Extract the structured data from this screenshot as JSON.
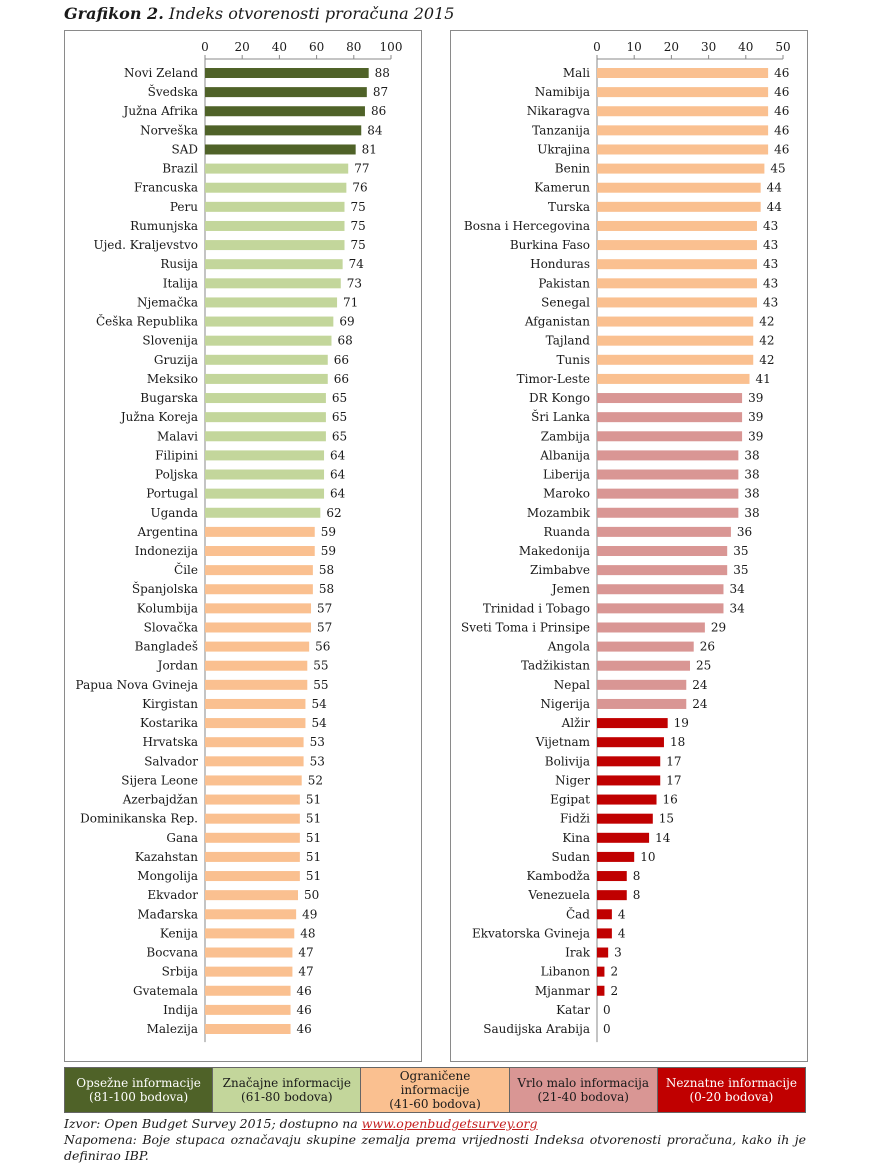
{
  "figure": {
    "title_bold": "Grafikon 2.",
    "title_rest": "Indeks otvorenosti proračuna 2015"
  },
  "colors": {
    "opsezne": "#4f6228",
    "znacajne": "#c3d69b",
    "ogranicene": "#fac090",
    "vrlo_malo": "#d99694",
    "neznatne": "#c00000"
  },
  "chart_data": [
    {
      "type": "bar",
      "orientation": "horizontal",
      "xlim": [
        0,
        100
      ],
      "ticks": [
        0,
        20,
        40,
        60,
        80,
        100
      ],
      "categories": [
        "Novi Zeland",
        "Švedska",
        "Južna Afrika",
        "Norveška",
        "SAD",
        "Brazil",
        "Francuska",
        "Peru",
        "Rumunjska",
        "Ujed. Kraljevstvo",
        "Rusija",
        "Italija",
        "Njemačka",
        "Češka Republika",
        "Slovenija",
        "Gruzija",
        "Meksiko",
        "Bugarska",
        "Južna Koreja",
        "Malavi",
        "Filipini",
        "Poljska",
        "Portugal",
        "Uganda",
        "Argentina",
        "Indonezija",
        "Čile",
        "Španjolska",
        "Kolumbija",
        "Slovačka",
        "Bangladeš",
        "Jordan",
        "Papua Nova Gvineja",
        "Kirgistan",
        "Kostarika",
        "Hrvatska",
        "Salvador",
        "Sijera Leone",
        "Azerbajdžan",
        "Dominikanska Rep.",
        "Gana",
        "Kazahstan",
        "Mongolija",
        "Ekvador",
        "Mađarska",
        "Kenija",
        "Bocvana",
        "Srbija",
        "Gvatemala",
        "Indija",
        "Malezija"
      ],
      "values": [
        88,
        87,
        86,
        84,
        81,
        77,
        76,
        75,
        75,
        75,
        74,
        73,
        71,
        69,
        68,
        66,
        66,
        65,
        65,
        65,
        64,
        64,
        64,
        62,
        59,
        59,
        58,
        58,
        57,
        57,
        56,
        55,
        55,
        54,
        54,
        53,
        53,
        52,
        51,
        51,
        51,
        51,
        51,
        50,
        49,
        48,
        47,
        47,
        46,
        46,
        46
      ]
    },
    {
      "type": "bar",
      "orientation": "horizontal",
      "xlim": [
        0,
        50
      ],
      "ticks": [
        0,
        10,
        20,
        30,
        40,
        50
      ],
      "categories": [
        "Mali",
        "Namibija",
        "Nikaragva",
        "Tanzanija",
        "Ukrajina",
        "Benin",
        "Kamerun",
        "Turska",
        "Bosna i Hercegovina",
        "Burkina Faso",
        "Honduras",
        "Pakistan",
        "Senegal",
        "Afganistan",
        "Tajland",
        "Tunis",
        "Timor-Leste",
        "DR Kongo",
        "Šri Lanka",
        "Zambija",
        "Albanija",
        "Liberija",
        "Maroko",
        "Mozambik",
        "Ruanda",
        "Makedonija",
        "Zimbabve",
        "Jemen",
        "Trinidad i Tobago",
        "Sveti Toma i Prinsipe",
        "Angola",
        "Tadžikistan",
        "Nepal",
        "Nigerija",
        "Alžir",
        "Vijetnam",
        "Bolivija",
        "Niger",
        "Egipat",
        "Fidži",
        "Kina",
        "Sudan",
        "Kambodža",
        "Venezuela",
        "Čad",
        "Ekvatorska Gvineja",
        "Irak",
        "Libanon",
        "Mjanmar",
        "Katar",
        "Saudijska Arabija"
      ],
      "values": [
        46,
        46,
        46,
        46,
        46,
        45,
        44,
        44,
        43,
        43,
        43,
        43,
        43,
        42,
        42,
        42,
        41,
        39,
        39,
        39,
        38,
        38,
        38,
        38,
        36,
        35,
        35,
        34,
        34,
        29,
        26,
        25,
        24,
        24,
        19,
        18,
        17,
        17,
        16,
        15,
        14,
        10,
        8,
        8,
        4,
        4,
        3,
        2,
        2,
        0,
        0
      ]
    }
  ],
  "legend": [
    {
      "key": "opsezne",
      "line1": "Opsežne informacije",
      "line2": "(81-100 bodova)",
      "text_color": "#ffffff"
    },
    {
      "key": "znacajne",
      "line1": "Značajne informacije",
      "line2": "(61-80 bodova)",
      "text_color": "#1a1a1a"
    },
    {
      "key": "ogranicene",
      "line1": "Ograničene",
      "line2": "informacije",
      "line3": "(41-60 bodova)",
      "text_color": "#1a1a1a"
    },
    {
      "key": "vrlo_malo",
      "line1": "Vrlo malo informacija",
      "line2": "(21-40 bodova)",
      "text_color": "#1a1a1a"
    },
    {
      "key": "neznatne",
      "line1": "Neznatne informacije",
      "line2": "(0-20 bodova)",
      "text_color": "#ffffff"
    }
  ],
  "source": {
    "prefix": "Izvor: Open Budget Survey 2015; dostupno na ",
    "link": "www.openbudgetsurvey.org"
  },
  "note": "Napomena: Boje stupaca označavaju skupine zemalja prema vrijednosti Indeksa otvorenosti proračuna, kako ih je definirao IBP."
}
